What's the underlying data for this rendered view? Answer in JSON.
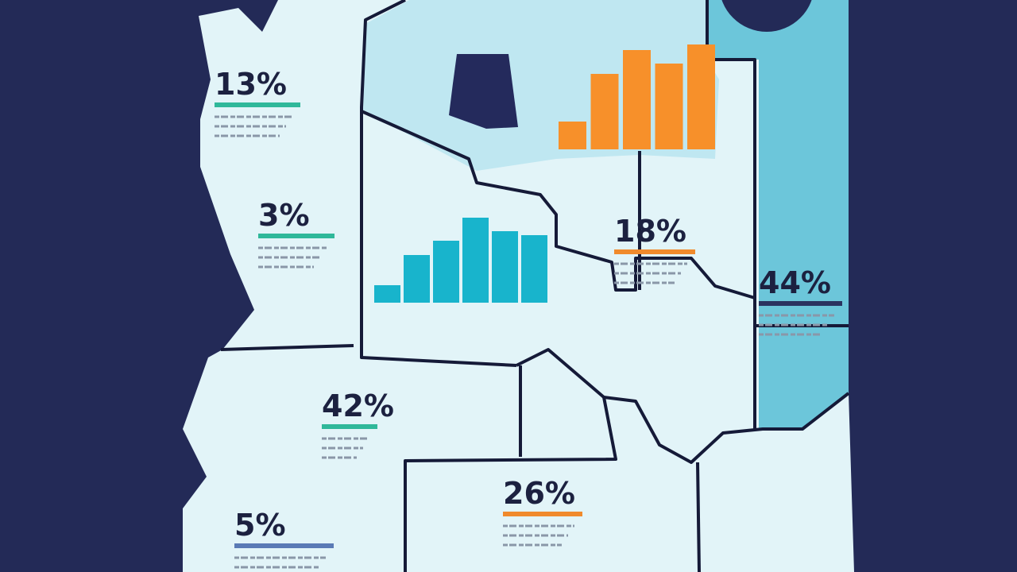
{
  "labels": [
    {
      "text": "13%",
      "color": "#2fb89a"
    },
    {
      "text": "3%",
      "color": "#2fb89a"
    },
    {
      "text": "18%",
      "color": "#f08a2c"
    },
    {
      "text": "44%",
      "color": "#2a3360"
    },
    {
      "text": "42%",
      "color": "#2fb89a"
    },
    {
      "text": "26%",
      "color": "#f08a2c"
    },
    {
      "text": "5%",
      "color": "#5a7ab5"
    }
  ],
  "bar_charts": [
    {
      "color": "#f7902a",
      "values": [
        35,
        95,
        125,
        108,
        132
      ]
    },
    {
      "color": "#18b4cc",
      "values": [
        22,
        60,
        78,
        107,
        90,
        85
      ]
    }
  ]
}
